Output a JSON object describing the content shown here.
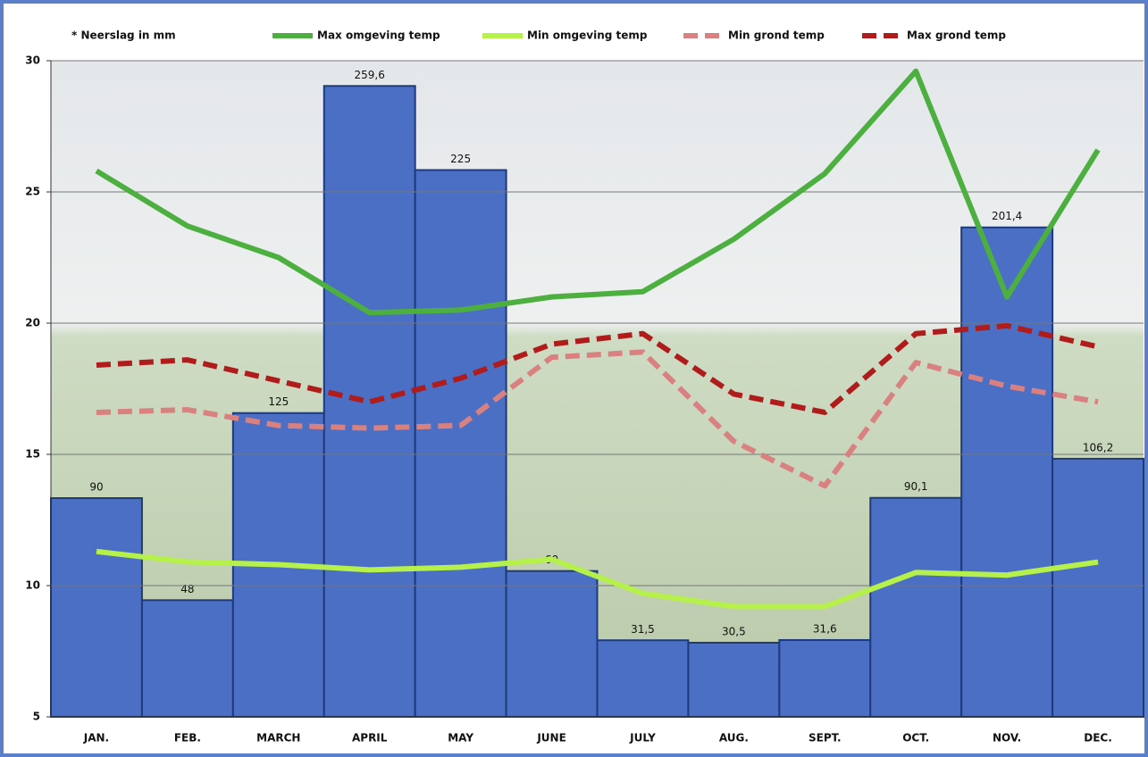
{
  "chart_data": {
    "type": "bar-line",
    "categories": [
      "JAN.",
      "FEB.",
      "MARCH",
      "APRIL",
      "MAY",
      "JUNE",
      "JULY",
      "AUG.",
      "SEPT.",
      "OCT.",
      "NOV.",
      "DEC."
    ],
    "ylim": [
      5,
      30
    ],
    "yticks": [
      5,
      10,
      15,
      20,
      25,
      30
    ],
    "y2lim": [
      0,
      270
    ],
    "grid": true,
    "legend": "top",
    "series": [
      {
        "name": "* Neerslag in mm",
        "type": "bar",
        "axis": "y2",
        "color": "#4a6fc4",
        "values": [
          90,
          48,
          125,
          259.6,
          225,
          60,
          31.5,
          30.5,
          31.6,
          90.1,
          201.4,
          106.2
        ],
        "value_labels": [
          "90",
          "48",
          "125",
          "259,6",
          "225",
          "60",
          "31,5",
          "30,5",
          "31,6",
          "90,1",
          "201,4",
          "106,2"
        ]
      },
      {
        "name": "Max omgeving temp",
        "type": "line",
        "color": "#4caf3f",
        "dashed": false,
        "values": [
          25.8,
          23.7,
          22.5,
          20.4,
          20.5,
          21,
          21.2,
          23.2,
          25.7,
          29.6,
          21,
          26.6
        ]
      },
      {
        "name": "Min omgeving temp",
        "type": "line",
        "color": "#b6f04a",
        "dashed": false,
        "values": [
          11.3,
          10.9,
          10.8,
          10.6,
          10.7,
          11,
          9.7,
          9.2,
          9.2,
          10.5,
          10.4,
          10.9
        ]
      },
      {
        "name": "Min grond temp",
        "type": "line",
        "color": "#d98080",
        "dashed": true,
        "values": [
          16.6,
          16.7,
          16.1,
          16.0,
          16.1,
          18.7,
          18.9,
          15.5,
          13.8,
          18.5,
          17.6,
          17.0
        ]
      },
      {
        "name": "Max grond temp",
        "type": "line",
        "color": "#b01c1c",
        "dashed": true,
        "values": [
          18.4,
          18.6,
          17.8,
          17.0,
          17.9,
          19.2,
          19.6,
          17.3,
          16.6,
          19.6,
          19.9,
          19.1
        ]
      }
    ]
  }
}
